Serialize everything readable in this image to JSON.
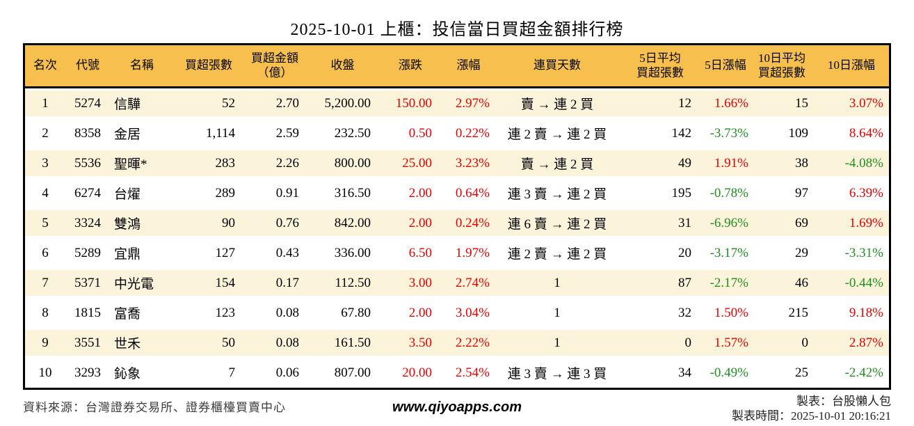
{
  "title": "2025-10-01 上櫃：投信當日買超金額排行榜",
  "colors": {
    "up_red": "#e60000",
    "down_green": "#1f8f1f",
    "header_bg": "#f7c04e",
    "row_alt_bg": "#fcf3db",
    "table_border": "#000000"
  },
  "table": {
    "headers": [
      "名次",
      "代號",
      "名稱",
      "買超張數",
      "買超金額\n（億）",
      "收盤",
      "漲跌",
      "漲幅",
      "連買天數",
      "5日平均\n買超張數",
      "5日漲幅",
      "10日平均\n買超張數",
      "10日漲幅"
    ],
    "rows": [
      {
        "cells": [
          "1",
          "5274",
          "信驊",
          "52",
          "2.70",
          "5,200.00",
          "150.00",
          "2.97%",
          "賣 → 連 2 買",
          "12",
          "1.66%",
          "15",
          "3.07%"
        ]
      },
      {
        "cells": [
          "2",
          "8358",
          "金居",
          "1,114",
          "2.59",
          "232.50",
          "0.50",
          "0.22%",
          "連 2 賣 → 連 2 買",
          "142",
          "-3.73%",
          "109",
          "8.64%"
        ]
      },
      {
        "cells": [
          "3",
          "5536",
          "聖暉*",
          "283",
          "2.26",
          "800.00",
          "25.00",
          "3.23%",
          "賣 → 連 2 買",
          "49",
          "1.91%",
          "38",
          "-4.08%"
        ]
      },
      {
        "cells": [
          "4",
          "6274",
          "台燿",
          "289",
          "0.91",
          "316.50",
          "2.00",
          "0.64%",
          "連 3 賣 → 連 2 買",
          "195",
          "-0.78%",
          "97",
          "6.39%"
        ]
      },
      {
        "cells": [
          "5",
          "3324",
          "雙鴻",
          "90",
          "0.76",
          "842.00",
          "2.00",
          "0.24%",
          "連 6 賣 → 連 2 買",
          "31",
          "-6.96%",
          "69",
          "1.69%"
        ]
      },
      {
        "cells": [
          "6",
          "5289",
          "宜鼎",
          "127",
          "0.43",
          "336.00",
          "6.50",
          "1.97%",
          "連 2 賣 → 連 2 買",
          "20",
          "-3.17%",
          "29",
          "-3.31%"
        ]
      },
      {
        "cells": [
          "7",
          "5371",
          "中光電",
          "154",
          "0.17",
          "112.50",
          "3.00",
          "2.74%",
          "1",
          "87",
          "-2.17%",
          "46",
          "-0.44%"
        ]
      },
      {
        "cells": [
          "8",
          "1815",
          "富喬",
          "123",
          "0.08",
          "67.80",
          "2.00",
          "3.04%",
          "1",
          "32",
          "1.50%",
          "215",
          "9.18%"
        ]
      },
      {
        "cells": [
          "9",
          "3551",
          "世禾",
          "50",
          "0.08",
          "161.50",
          "3.50",
          "2.22%",
          "1",
          "0",
          "1.57%",
          "0",
          "2.87%"
        ]
      },
      {
        "cells": [
          "10",
          "3293",
          "鈊象",
          "7",
          "0.06",
          "807.00",
          "20.00",
          "2.54%",
          "連 3 賣 → 連 3 買",
          "34",
          "-0.49%",
          "25",
          "-2.42%"
        ]
      }
    ]
  },
  "footer": {
    "source": "資料來源：台灣證券交易所、證券櫃檯買賣中心",
    "website": "www.qiyoapps.com",
    "author": "製表：台股懶人包",
    "generated_at": "製表時間：2025-10-01 20:16:21"
  }
}
